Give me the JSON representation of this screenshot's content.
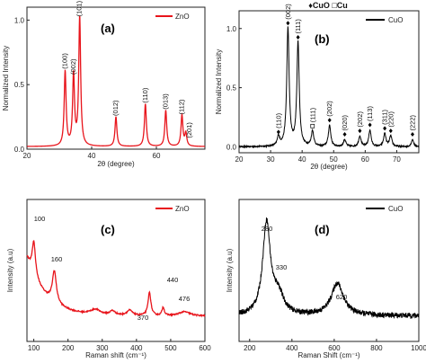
{
  "header": {
    "legend_text": "♦CuO □Cu"
  },
  "chart_data": [
    {
      "panel": "(a)",
      "type": "line",
      "xlabel": "2θ (degree)",
      "ylabel": "Normalized Intensity",
      "xlim": [
        20,
        75
      ],
      "ylim": [
        0,
        1.1
      ],
      "xticks": [
        20,
        40,
        60
      ],
      "yticks": [
        0.0,
        0.5,
        1.0
      ],
      "series": [
        {
          "name": "ZnO",
          "color": "#e8141b"
        }
      ],
      "peaks": [
        {
          "x": 31.8,
          "y": 0.58,
          "label": "(100)"
        },
        {
          "x": 34.4,
          "y": 0.55,
          "label": "(002)"
        },
        {
          "x": 36.3,
          "y": 1.0,
          "label": "(101)"
        },
        {
          "x": 47.5,
          "y": 0.23,
          "label": "(012)"
        },
        {
          "x": 56.6,
          "y": 0.33,
          "label": "(110)"
        },
        {
          "x": 62.9,
          "y": 0.28,
          "label": "(013)"
        },
        {
          "x": 67.9,
          "y": 0.24,
          "label": "(112)"
        },
        {
          "x": 69.1,
          "y": 0.1,
          "label": "(201)"
        }
      ],
      "baseline": 0.02,
      "width": 0.35
    },
    {
      "panel": "(b)",
      "type": "line",
      "xlabel": "2θ (degree)",
      "ylabel": "Normalized Intensity",
      "xlim": [
        20,
        77
      ],
      "ylim": [
        -0.05,
        1.15
      ],
      "xticks": [
        20,
        30,
        40,
        50,
        60,
        70
      ],
      "yticks": [
        0.0,
        0.5,
        1.0
      ],
      "series": [
        {
          "name": "CuO",
          "color": "#000000"
        }
      ],
      "peaks": [
        {
          "x": 32.5,
          "y": 0.08,
          "label": "(110)"
        },
        {
          "x": 35.5,
          "y": 1.0,
          "label": "(002)"
        },
        {
          "x": 38.7,
          "y": 0.88,
          "label": "(111)"
        },
        {
          "x": 43.3,
          "y": 0.13,
          "label": "(111)"
        },
        {
          "x": 48.7,
          "y": 0.18,
          "label": "(202)"
        },
        {
          "x": 53.5,
          "y": 0.06,
          "label": "(020)"
        },
        {
          "x": 58.3,
          "y": 0.09,
          "label": "(202)"
        },
        {
          "x": 61.5,
          "y": 0.14,
          "label": "(113)"
        },
        {
          "x": 66.2,
          "y": 0.11,
          "label": "(311)"
        },
        {
          "x": 68.1,
          "y": 0.09,
          "label": "(220)"
        },
        {
          "x": 75.0,
          "y": 0.06,
          "label": "(222)"
        }
      ],
      "baseline": 0.0,
      "width": 0.45,
      "noise": 0.006
    },
    {
      "panel": "(c)",
      "type": "line",
      "xlabel": "Raman shift (cm⁻¹)",
      "ylabel": "Intensity (a.u)",
      "xlim": [
        80,
        600
      ],
      "xticks": [
        100,
        200,
        300,
        400,
        500,
        600
      ],
      "series": [
        {
          "name": "ZnO",
          "color": "#e8141b"
        }
      ],
      "peaks": [
        {
          "x": 100,
          "y": 0.7,
          "label": "100"
        },
        {
          "x": 160,
          "y": 0.48,
          "label": "160"
        },
        {
          "x": 370,
          "y": 0.08,
          "label": "370"
        },
        {
          "x": 440,
          "y": 0.33,
          "label": "440"
        },
        {
          "x": 476,
          "y": 0.14,
          "label": "476"
        }
      ]
    },
    {
      "panel": "(d)",
      "type": "line",
      "xlabel": "Raman Shift (cm⁻¹)",
      "ylabel": "Intensity (a.u)",
      "xlim": [
        150,
        1000
      ],
      "xticks": [
        200,
        400,
        600,
        800,
        1000
      ],
      "series": [
        {
          "name": "CuO",
          "color": "#000000"
        }
      ],
      "peaks": [
        {
          "x": 280,
          "y": 0.9,
          "label": "280"
        },
        {
          "x": 330,
          "y": 0.45,
          "label": "330"
        },
        {
          "x": 620,
          "y": 0.35,
          "label": "620"
        }
      ]
    }
  ]
}
